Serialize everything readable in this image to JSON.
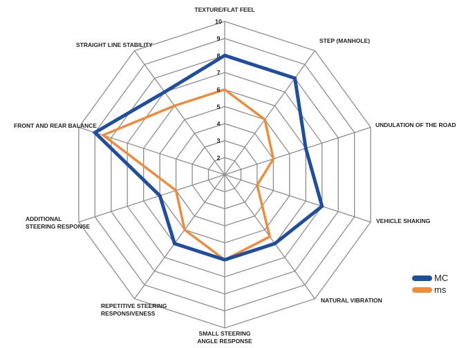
{
  "chart_data": {
    "type": "radar",
    "title": "",
    "categories": [
      "TEXTURE/FLAT FEEL",
      "STEP (MANHOLE)",
      "UNDULATION OF THE ROAD SURFACE",
      "VEHICLE SHAKING",
      "NATURAL VIBRATION",
      "SMALL STEERING ANGLE RESPONSE",
      "REPETITIVE STEERING RESPONSIVENESS",
      "ADDITIONAL STEERING RESPONSE",
      "FRONT AND REAR BALANCE",
      "STRAIGHT LINE STABILITY"
    ],
    "rlim": [
      1,
      10
    ],
    "ticks": [
      "2",
      "3",
      "4",
      "5",
      "6",
      "7",
      "8",
      "9",
      "10"
    ],
    "grid": true,
    "legend_position": "bottom-right",
    "series": [
      {
        "name": "MC",
        "color": "#1f4e9e",
        "values": [
          8,
          8,
          6,
          7,
          6,
          6,
          6,
          5,
          9,
          7
        ]
      },
      {
        "name": "ms",
        "color": "#ef8b3b",
        "values": [
          6,
          5,
          4,
          3,
          5.5,
          6,
          5,
          4,
          8.5,
          6
        ]
      }
    ]
  }
}
